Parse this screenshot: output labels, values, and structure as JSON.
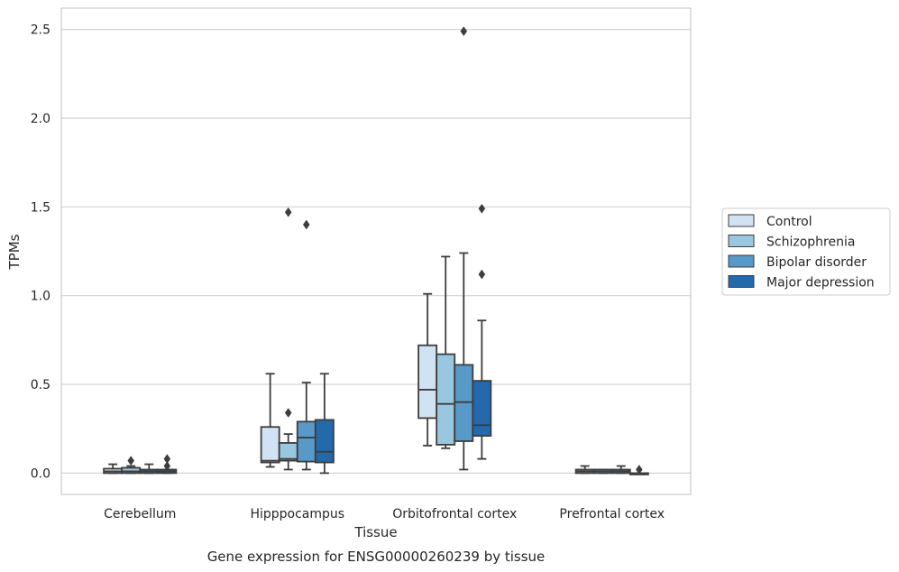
{
  "chart_data": {
    "type": "box",
    "title": "",
    "caption": "Gene expression for ENSG00000260239 by tissue",
    "xlabel": "Tissue",
    "ylabel": "TPMs",
    "ylim": [
      -0.12,
      2.62
    ],
    "yticks": [
      "0.0",
      "0.5",
      "1.0",
      "1.5",
      "2.0",
      "2.5"
    ],
    "grid": "horizontal",
    "legend_position": "right",
    "categories": [
      "Cerebellum",
      "Hipppocampus",
      "Orbitofrontal cortex",
      "Prefrontal cortex"
    ],
    "series": [
      {
        "name": "Control",
        "color": "#d1e2f2",
        "boxes": [
          {
            "whislo": 0.0,
            "q1": 0.0,
            "med": 0.01,
            "q3": 0.025,
            "whishi": 0.05,
            "fliers": []
          },
          {
            "whislo": 0.035,
            "q1": 0.06,
            "med": 0.07,
            "q3": 0.26,
            "whishi": 0.56,
            "fliers": []
          },
          {
            "whislo": 0.155,
            "q1": 0.31,
            "med": 0.47,
            "q3": 0.72,
            "whishi": 1.01,
            "fliers": []
          },
          {
            "whislo": 0.0,
            "q1": 0.0,
            "med": 0.01,
            "q3": 0.02,
            "whishi": 0.04,
            "fliers": []
          }
        ]
      },
      {
        "name": "Schizophrenia",
        "color": "#9ac7e0",
        "boxes": [
          {
            "whislo": 0.0,
            "q1": 0.0,
            "med": 0.01,
            "q3": 0.03,
            "whishi": 0.04,
            "fliers": [
              0.07
            ]
          },
          {
            "whislo": 0.02,
            "q1": 0.07,
            "med": 0.08,
            "q3": 0.17,
            "whishi": 0.22,
            "fliers": [
              0.34,
              1.47
            ]
          },
          {
            "whislo": 0.14,
            "q1": 0.16,
            "med": 0.39,
            "q3": 0.67,
            "whishi": 1.22,
            "fliers": []
          },
          {
            "whislo": 0.0,
            "q1": 0.0,
            "med": 0.01,
            "q3": 0.02,
            "whishi": 0.02,
            "fliers": []
          }
        ]
      },
      {
        "name": "Bipolar disorder",
        "color": "#5899c9",
        "boxes": [
          {
            "whislo": 0.0,
            "q1": 0.0,
            "med": 0.01,
            "q3": 0.02,
            "whishi": 0.05,
            "fliers": []
          },
          {
            "whislo": 0.02,
            "q1": 0.065,
            "med": 0.2,
            "q3": 0.29,
            "whishi": 0.51,
            "fliers": [
              1.4
            ]
          },
          {
            "whislo": 0.02,
            "q1": 0.18,
            "med": 0.4,
            "q3": 0.61,
            "whishi": 1.24,
            "fliers": [
              2.49
            ]
          },
          {
            "whislo": 0.0,
            "q1": 0.0,
            "med": 0.01,
            "q3": 0.02,
            "whishi": 0.04,
            "fliers": []
          }
        ]
      },
      {
        "name": "Major depression",
        "color": "#2469ac",
        "boxes": [
          {
            "whislo": 0.0,
            "q1": 0.0,
            "med": 0.01,
            "q3": 0.02,
            "whishi": 0.02,
            "fliers": [
              0.04,
              0.08
            ]
          },
          {
            "whislo": 0.0,
            "q1": 0.06,
            "med": 0.12,
            "q3": 0.3,
            "whishi": 0.56,
            "fliers": []
          },
          {
            "whislo": 0.08,
            "q1": 0.21,
            "med": 0.27,
            "q3": 0.52,
            "whishi": 0.86,
            "fliers": [
              1.12,
              1.49
            ]
          },
          {
            "whislo": 0.0,
            "q1": 0.0,
            "med": 0.0,
            "q3": 0.0,
            "whishi": 0.0,
            "fliers": [
              0.02
            ]
          }
        ]
      }
    ]
  }
}
